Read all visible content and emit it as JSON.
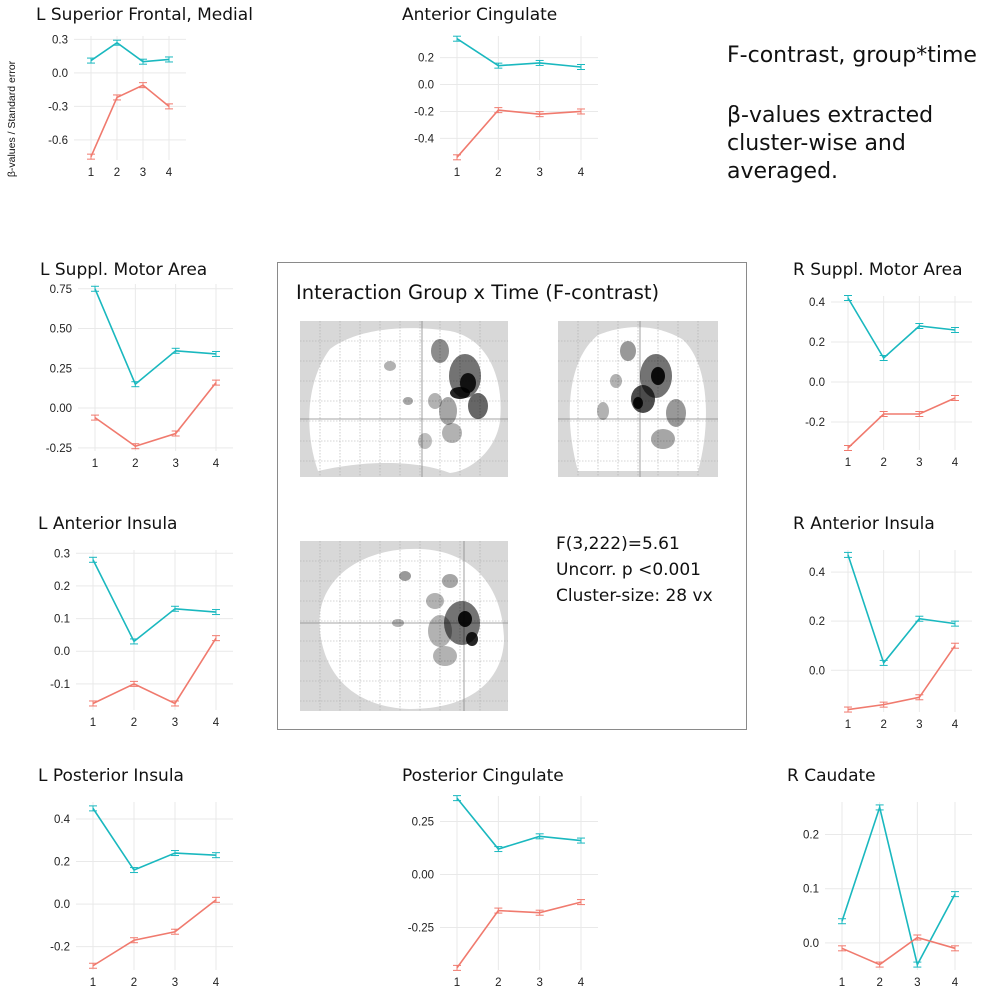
{
  "y_axis_label": "β-values / Standard error",
  "notes": {
    "line1": "F-contrast, group*time",
    "line2": [
      "β-values extracted",
      "cluster-wise and",
      "averaged."
    ]
  },
  "center": {
    "title": "Interaction Group x Time  (F-contrast)",
    "stats": [
      "F(3,222)=5.61",
      "Uncorr. p <0.001",
      "Cluster-size: 28 vx"
    ]
  },
  "colors": {
    "teal": "#1ab8bf",
    "salmon": "#f07a6e",
    "grid": "#e9e9e9"
  },
  "chart_data": [
    {
      "id": "lsfm",
      "type": "line",
      "title": "L Superior Frontal, Medial",
      "categories": [
        "1",
        "2",
        "3",
        "4"
      ],
      "yticks": [
        "0.3",
        "0.0",
        "-0.3",
        "-0.6"
      ],
      "ytick_values": [
        0.3,
        0.0,
        -0.3,
        -0.6
      ],
      "ylim": [
        -0.78,
        0.33
      ],
      "series": [
        {
          "color": "#1ab8bf",
          "values": [
            0.11,
            0.27,
            0.1,
            0.12
          ]
        },
        {
          "color": "#f07a6e",
          "values": [
            -0.75,
            -0.22,
            -0.11,
            -0.3
          ]
        }
      ]
    },
    {
      "id": "acc",
      "type": "line",
      "title": "Anterior Cingulate",
      "categories": [
        "1",
        "2",
        "3",
        "4"
      ],
      "yticks": [
        "0.2",
        "0.0",
        "-0.2",
        "-0.4"
      ],
      "ytick_values": [
        0.2,
        0.0,
        -0.2,
        -0.4
      ],
      "ylim": [
        -0.56,
        0.36
      ],
      "series": [
        {
          "color": "#1ab8bf",
          "values": [
            0.34,
            0.14,
            0.16,
            0.13
          ]
        },
        {
          "color": "#f07a6e",
          "values": [
            -0.54,
            -0.19,
            -0.22,
            -0.2
          ]
        }
      ]
    },
    {
      "id": "lsma",
      "type": "line",
      "title": "L Suppl. Motor Area",
      "categories": [
        "1",
        "2",
        "3",
        "4"
      ],
      "yticks": [
        "0.75",
        "0.50",
        "0.25",
        "0.00",
        "-0.25"
      ],
      "ytick_values": [
        0.75,
        0.5,
        0.25,
        0.0,
        -0.25
      ],
      "ylim": [
        -0.27,
        0.78
      ],
      "series": [
        {
          "color": "#1ab8bf",
          "values": [
            0.75,
            0.15,
            0.36,
            0.34
          ]
        },
        {
          "color": "#f07a6e",
          "values": [
            -0.06,
            -0.24,
            -0.16,
            0.16
          ]
        }
      ]
    },
    {
      "id": "rsma",
      "type": "line",
      "title": "R Suppl. Motor Area",
      "categories": [
        "1",
        "2",
        "3",
        "4"
      ],
      "yticks": [
        "0.4",
        "0.2",
        "0.0",
        "-0.2"
      ],
      "ytick_values": [
        0.4,
        0.2,
        0.0,
        -0.2
      ],
      "ylim": [
        -0.34,
        0.43
      ],
      "series": [
        {
          "color": "#1ab8bf",
          "values": [
            0.42,
            0.12,
            0.28,
            0.26
          ]
        },
        {
          "color": "#f07a6e",
          "values": [
            -0.33,
            -0.16,
            -0.16,
            -0.08
          ]
        }
      ]
    },
    {
      "id": "lai",
      "type": "line",
      "title": "L Anterior Insula",
      "categories": [
        "1",
        "2",
        "3",
        "4"
      ],
      "yticks": [
        "0.3",
        "0.2",
        "0.1",
        "0.0",
        "-0.1"
      ],
      "ytick_values": [
        0.3,
        0.2,
        0.1,
        0.0,
        -0.1
      ],
      "ylim": [
        -0.18,
        0.31
      ],
      "series": [
        {
          "color": "#1ab8bf",
          "values": [
            0.28,
            0.03,
            0.13,
            0.12
          ]
        },
        {
          "color": "#f07a6e",
          "values": [
            -0.16,
            -0.1,
            -0.16,
            0.04
          ]
        }
      ]
    },
    {
      "id": "rai",
      "type": "line",
      "title": "R Anterior Insula",
      "categories": [
        "1",
        "2",
        "3",
        "4"
      ],
      "yticks": [
        "0.4",
        "0.2",
        "0.0"
      ],
      "ytick_values": [
        0.4,
        0.2,
        0.0
      ],
      "ylim": [
        -0.17,
        0.49
      ],
      "series": [
        {
          "color": "#1ab8bf",
          "values": [
            0.47,
            0.03,
            0.21,
            0.19
          ]
        },
        {
          "color": "#f07a6e",
          "values": [
            -0.16,
            -0.14,
            -0.11,
            0.1
          ]
        }
      ]
    },
    {
      "id": "lpi",
      "type": "line",
      "title": "L Posterior Insula",
      "categories": [
        "1",
        "2",
        "3",
        "4"
      ],
      "yticks": [
        "0.4",
        "0.2",
        "0.0",
        "-0.2"
      ],
      "ytick_values": [
        0.4,
        0.2,
        0.0,
        -0.2
      ],
      "ylim": [
        -0.31,
        0.48
      ],
      "series": [
        {
          "color": "#1ab8bf",
          "values": [
            0.45,
            0.16,
            0.24,
            0.23
          ]
        },
        {
          "color": "#f07a6e",
          "values": [
            -0.29,
            -0.17,
            -0.13,
            0.02
          ]
        }
      ]
    },
    {
      "id": "pcc",
      "type": "line",
      "title": "Posterior Cingulate",
      "categories": [
        "1",
        "2",
        "3",
        "4"
      ],
      "yticks": [
        "0.25",
        "0.00",
        "-0.25"
      ],
      "ytick_values": [
        0.25,
        0.0,
        -0.25
      ],
      "ylim": [
        -0.45,
        0.37
      ],
      "series": [
        {
          "color": "#1ab8bf",
          "values": [
            0.36,
            0.12,
            0.18,
            0.16
          ]
        },
        {
          "color": "#f07a6e",
          "values": [
            -0.44,
            -0.17,
            -0.18,
            -0.13
          ]
        }
      ]
    },
    {
      "id": "rcau",
      "type": "line",
      "title": "R Caudate",
      "categories": [
        "1",
        "2",
        "3",
        "4"
      ],
      "yticks": [
        "0.2",
        "0.1",
        "0.0"
      ],
      "ytick_values": [
        0.2,
        0.1,
        0.0
      ],
      "ylim": [
        -0.05,
        0.26
      ],
      "series": [
        {
          "color": "#1ab8bf",
          "values": [
            0.04,
            0.25,
            -0.04,
            0.09
          ]
        },
        {
          "color": "#f07a6e",
          "values": [
            -0.01,
            -0.04,
            0.01,
            -0.01
          ]
        }
      ]
    }
  ]
}
